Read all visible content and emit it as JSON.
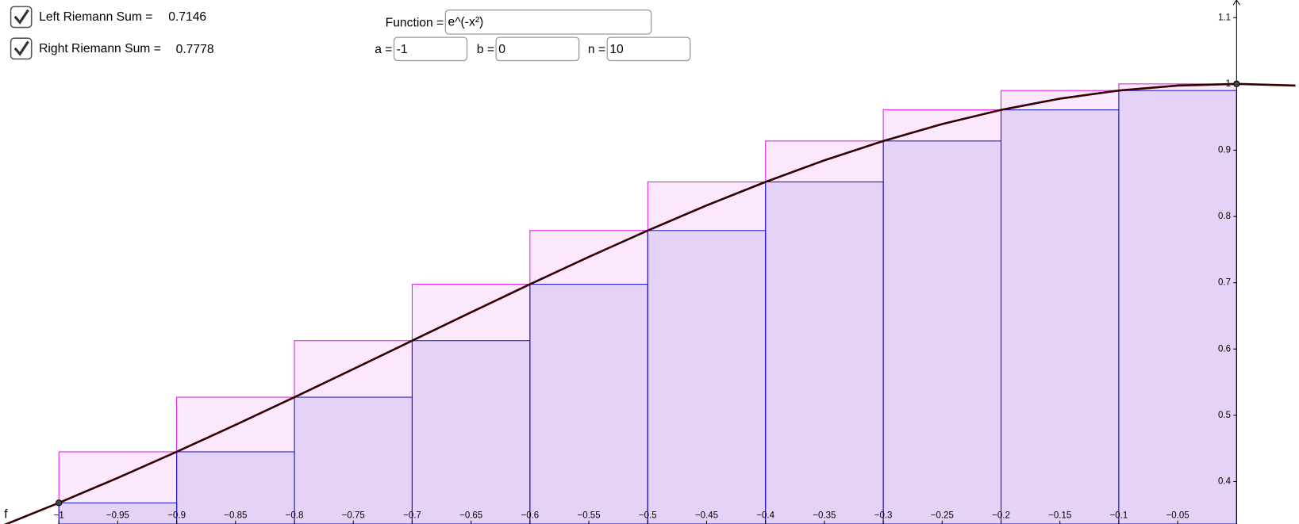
{
  "controls": {
    "left_sum": {
      "label": "Left Riemann Sum =",
      "value": "0.7146",
      "checked": true,
      "color": "#1a1acc"
    },
    "right_sum": {
      "label": "Right Riemann Sum =",
      "value": "0.7778",
      "checked": true,
      "color": "#e619e6"
    },
    "function": {
      "label": "Function =",
      "value": "e^(-x²)"
    },
    "a": {
      "label": "a =",
      "value": "-1"
    },
    "b": {
      "label": "b =",
      "value": "0"
    },
    "n": {
      "label": "n =",
      "value": "10"
    }
  },
  "graph": {
    "type": "riemann",
    "function_label": "f",
    "curve_color": "#330000",
    "xlim": [
      -1.05,
      0.053
    ],
    "ylim": [
      0.336,
      1.1266
    ],
    "xticks": [
      {
        "value": -1,
        "label": "−1"
      },
      {
        "value": -0.95,
        "label": "−0.95"
      },
      {
        "value": -0.9,
        "label": "−0.9"
      },
      {
        "value": -0.85,
        "label": "−0.85"
      },
      {
        "value": -0.8,
        "label": "−0.8"
      },
      {
        "value": -0.75,
        "label": "−0.75"
      },
      {
        "value": -0.7,
        "label": "−0.7"
      },
      {
        "value": -0.65,
        "label": "−0.65"
      },
      {
        "value": -0.6,
        "label": "−0.6"
      },
      {
        "value": -0.55,
        "label": "−0.55"
      },
      {
        "value": -0.5,
        "label": "−0.5"
      },
      {
        "value": -0.45,
        "label": "−0.45"
      },
      {
        "value": -0.4,
        "label": "−0.4"
      },
      {
        "value": -0.35,
        "label": "−0.35"
      },
      {
        "value": -0.3,
        "label": "−0.3"
      },
      {
        "value": -0.25,
        "label": "−0.25"
      },
      {
        "value": -0.2,
        "label": "−0.2"
      },
      {
        "value": -0.15,
        "label": "−0.15"
      },
      {
        "value": -0.1,
        "label": "−0.1"
      },
      {
        "value": -0.05,
        "label": "−0.05"
      }
    ],
    "yticks": [
      0.4,
      0.5,
      0.6,
      0.7,
      0.8,
      0.9,
      1,
      1.1
    ],
    "partition": [
      -1,
      -0.9,
      -0.8,
      -0.7,
      -0.6,
      -0.5,
      -0.4,
      -0.3,
      -0.2,
      -0.1,
      0
    ],
    "left_heights": [
      0.3679,
      0.4449,
      0.5273,
      0.6126,
      0.6977,
      0.7788,
      0.8521,
      0.9139,
      0.9608,
      0.99
    ],
    "right_heights": [
      0.4449,
      0.5273,
      0.6126,
      0.6977,
      0.7788,
      0.8521,
      0.9139,
      0.9608,
      0.99,
      1
    ],
    "curve": {
      "x": [
        -1.05,
        -1,
        -0.95,
        -0.9,
        -0.85,
        -0.8,
        -0.75,
        -0.7,
        -0.65,
        -0.6,
        -0.55,
        -0.5,
        -0.45,
        -0.4,
        -0.35,
        -0.3,
        -0.25,
        -0.2,
        -0.15,
        -0.1,
        -0.05,
        0,
        0.05
      ],
      "y": [
        0.332,
        0.3679,
        0.4056,
        0.4449,
        0.4856,
        0.5273,
        0.5698,
        0.6126,
        0.6554,
        0.6977,
        0.739,
        0.7788,
        0.8167,
        0.8521,
        0.8847,
        0.9139,
        0.9394,
        0.9608,
        0.9778,
        0.99,
        0.9975,
        1,
        0.9975
      ]
    },
    "points": [
      1,
      21
    ]
  }
}
